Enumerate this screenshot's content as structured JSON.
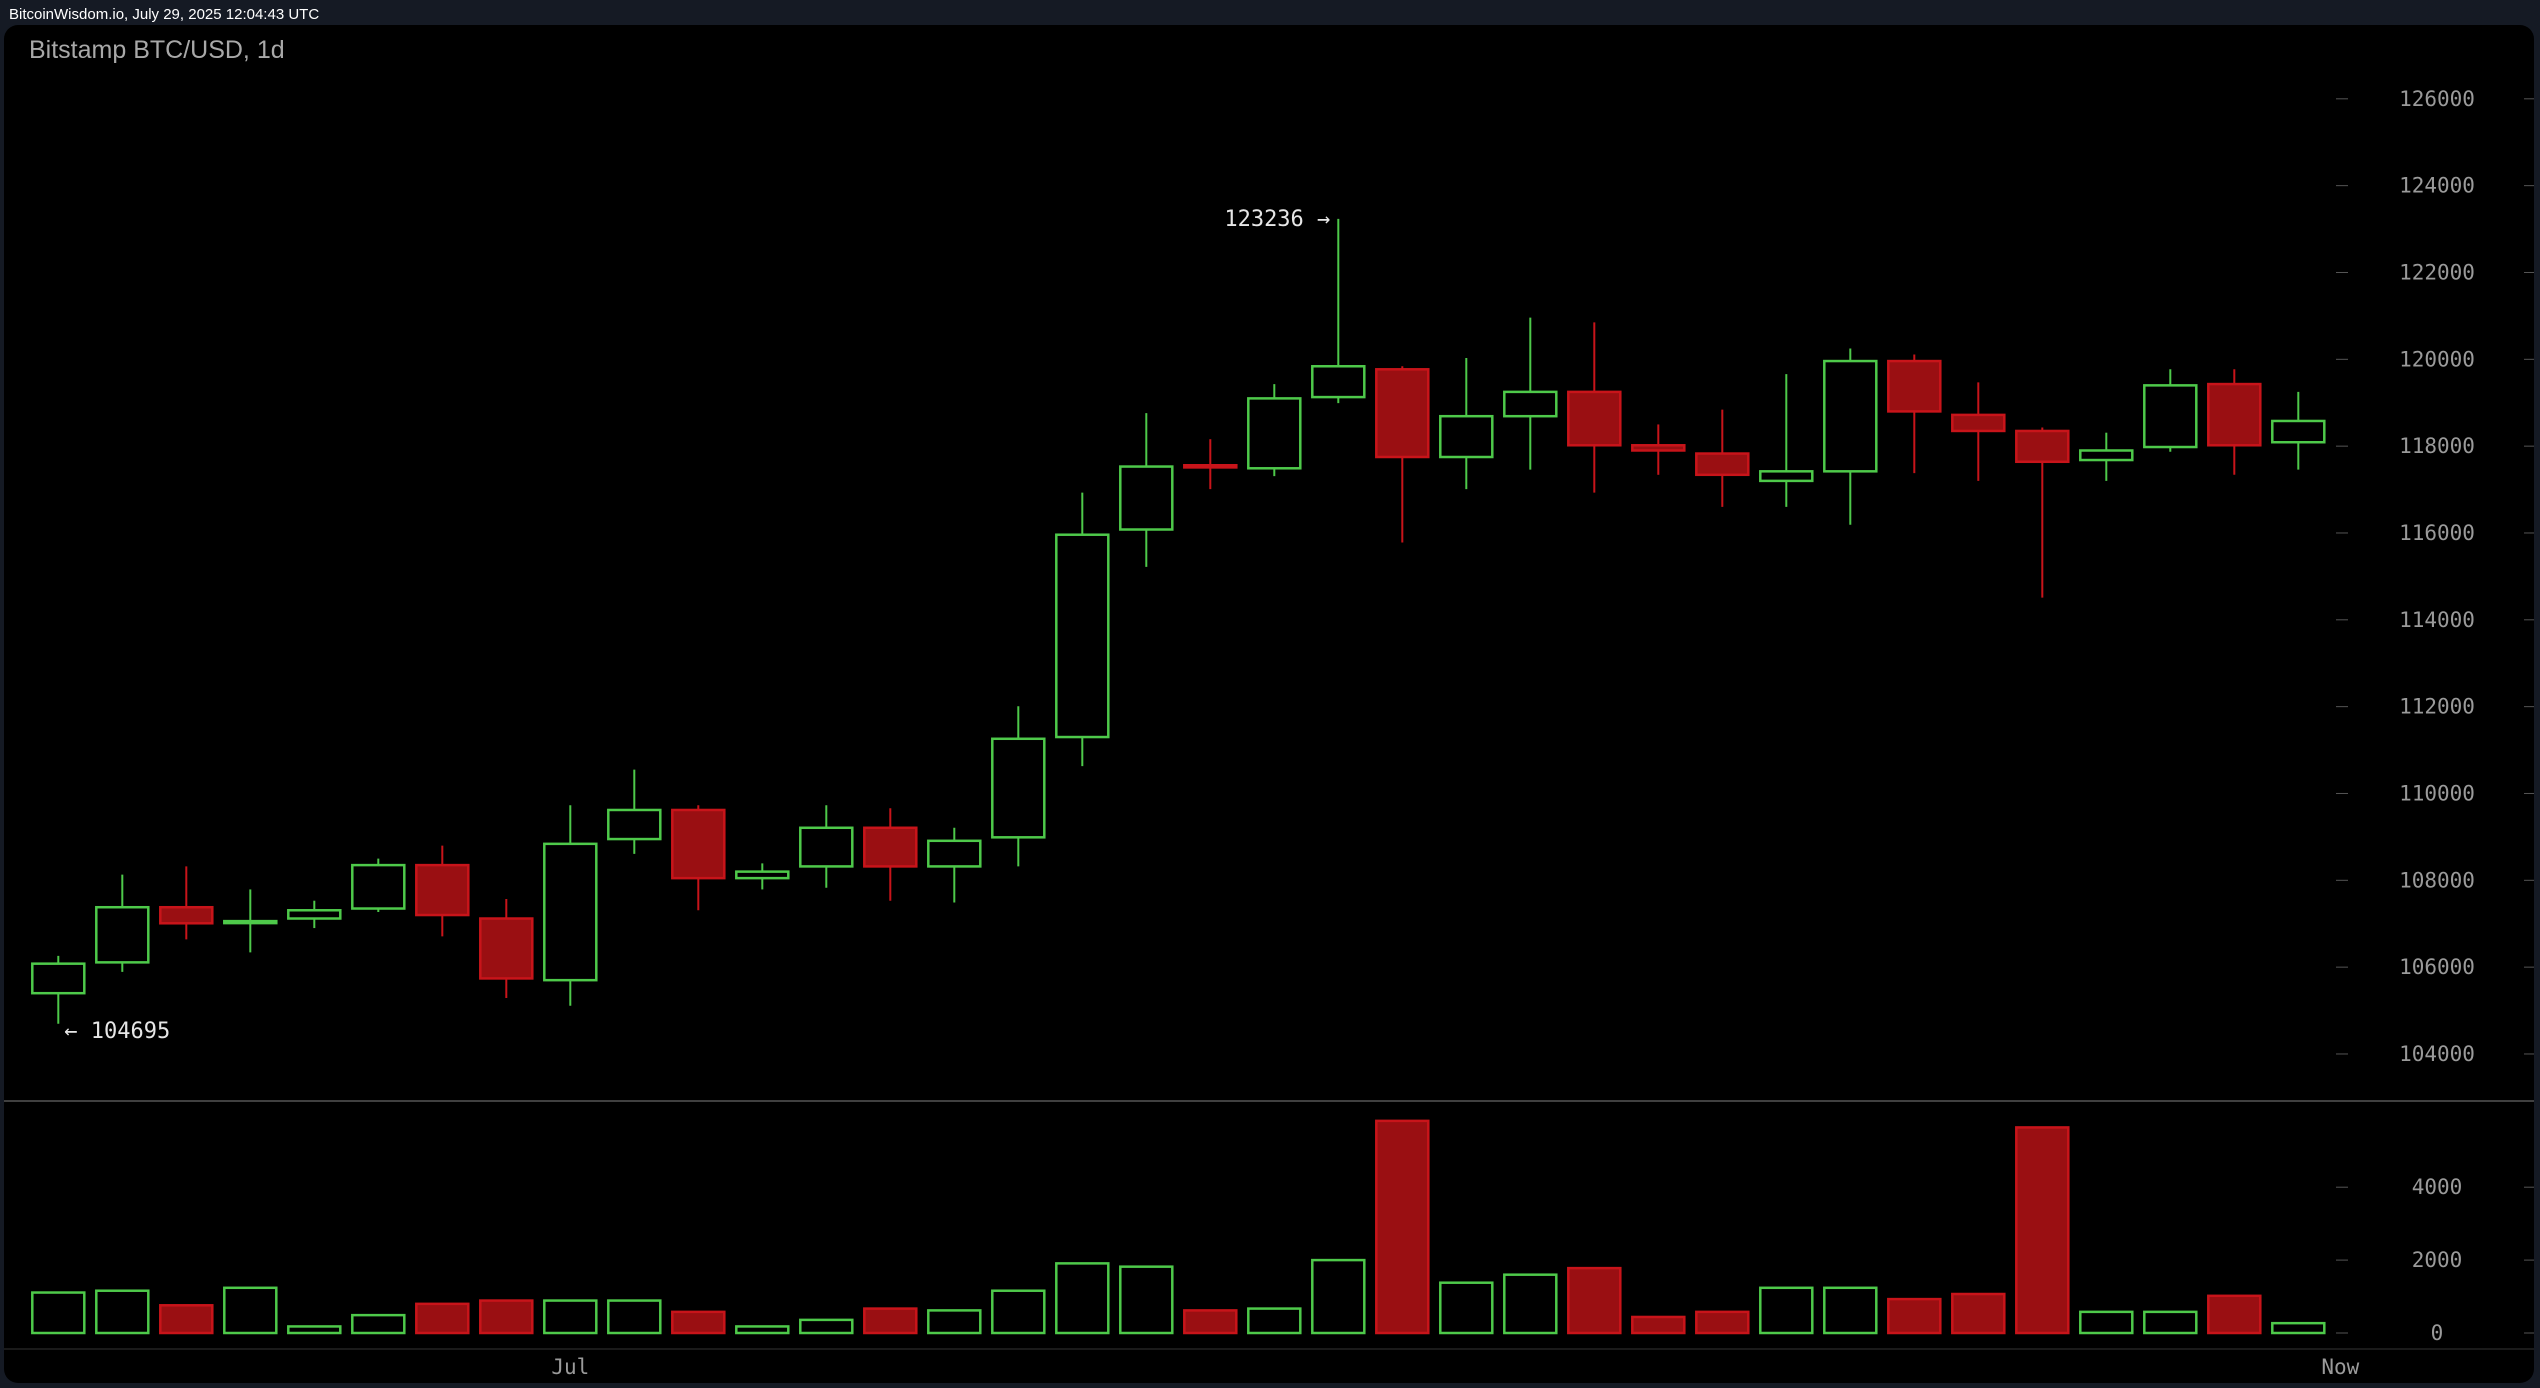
{
  "header": {
    "source": "BitcoinWisdom.io, July 29, 2025 12:04:43 UTC"
  },
  "chart_data": {
    "type": "candlestick",
    "title": "Bitstamp BTC/USD, 1d",
    "colors": {
      "up": "#4ec94a",
      "down": "#c8141a",
      "down_fill": "#9a0f12",
      "background": "#000000"
    },
    "price_axis": {
      "ylim": [
        103000,
        127000
      ],
      "ticks": [
        "104000",
        "106000",
        "108000",
        "110000",
        "112000",
        "114000",
        "116000",
        "118000",
        "120000",
        "122000",
        "124000",
        "126000"
      ]
    },
    "volume_axis": {
      "ylim": [
        0,
        6000
      ],
      "ticks": [
        "0",
        "2000",
        "4000"
      ]
    },
    "x_labels": [
      {
        "index": 8,
        "label": "Jul"
      },
      {
        "index": 36,
        "label": "Now"
      }
    ],
    "annotations": {
      "high": {
        "index": 20,
        "label": "123236 →",
        "value": 123236
      },
      "low": {
        "index": 0,
        "label": "← 104695",
        "value": 104695
      }
    },
    "candles": [
      {
        "o": 105400,
        "h": 106260,
        "l": 104695,
        "c": 106080,
        "v": 1110
      },
      {
        "o": 106110,
        "h": 108130,
        "l": 105890,
        "c": 107380,
        "v": 1160
      },
      {
        "o": 107380,
        "h": 108320,
        "l": 106640,
        "c": 107010,
        "v": 760
      },
      {
        "o": 107030,
        "h": 107790,
        "l": 106340,
        "c": 107060,
        "v": 1240
      },
      {
        "o": 107120,
        "h": 107530,
        "l": 106900,
        "c": 107310,
        "v": 180
      },
      {
        "o": 107350,
        "h": 108500,
        "l": 107270,
        "c": 108350,
        "v": 490
      },
      {
        "o": 108350,
        "h": 108800,
        "l": 106710,
        "c": 107200,
        "v": 800
      },
      {
        "o": 107120,
        "h": 107570,
        "l": 105290,
        "c": 105740,
        "v": 890
      },
      {
        "o": 105700,
        "h": 109730,
        "l": 105110,
        "c": 108840,
        "v": 890
      },
      {
        "o": 108950,
        "h": 110550,
        "l": 108610,
        "c": 109620,
        "v": 890
      },
      {
        "o": 109620,
        "h": 109730,
        "l": 107310,
        "c": 108050,
        "v": 580
      },
      {
        "o": 108050,
        "h": 108390,
        "l": 107790,
        "c": 108200,
        "v": 180
      },
      {
        "o": 108320,
        "h": 109730,
        "l": 107830,
        "c": 109210,
        "v": 360
      },
      {
        "o": 109210,
        "h": 109660,
        "l": 107530,
        "c": 108320,
        "v": 670
      },
      {
        "o": 108320,
        "h": 109210,
        "l": 107490,
        "c": 108910,
        "v": 620
      },
      {
        "o": 108990,
        "h": 112010,
        "l": 108320,
        "c": 111260,
        "v": 1160
      },
      {
        "o": 111300,
        "h": 116930,
        "l": 110630,
        "c": 115960,
        "v": 1910
      },
      {
        "o": 116080,
        "h": 118760,
        "l": 115220,
        "c": 117530,
        "v": 1820
      },
      {
        "o": 117560,
        "h": 118160,
        "l": 117010,
        "c": 117510,
        "v": 620
      },
      {
        "o": 117490,
        "h": 119430,
        "l": 117310,
        "c": 119100,
        "v": 670
      },
      {
        "o": 119130,
        "h": 123236,
        "l": 118990,
        "c": 119840,
        "v": 2000
      },
      {
        "o": 119770,
        "h": 119840,
        "l": 115780,
        "c": 117750,
        "v": 5820
      },
      {
        "o": 117750,
        "h": 120030,
        "l": 117010,
        "c": 118690,
        "v": 1380
      },
      {
        "o": 118690,
        "h": 120960,
        "l": 117460,
        "c": 119250,
        "v": 1600
      },
      {
        "o": 119250,
        "h": 120850,
        "l": 116930,
        "c": 118020,
        "v": 1780
      },
      {
        "o": 118020,
        "h": 118500,
        "l": 117340,
        "c": 117900,
        "v": 440
      },
      {
        "o": 117830,
        "h": 118840,
        "l": 116600,
        "c": 117340,
        "v": 580
      },
      {
        "o": 117200,
        "h": 119660,
        "l": 116600,
        "c": 117420,
        "v": 1240
      },
      {
        "o": 117420,
        "h": 120250,
        "l": 116190,
        "c": 119960,
        "v": 1240
      },
      {
        "o": 119960,
        "h": 120110,
        "l": 117380,
        "c": 118800,
        "v": 930
      },
      {
        "o": 118720,
        "h": 119470,
        "l": 117200,
        "c": 118350,
        "v": 1070
      },
      {
        "o": 118350,
        "h": 118430,
        "l": 114510,
        "c": 117640,
        "v": 5640
      },
      {
        "o": 117680,
        "h": 118310,
        "l": 117200,
        "c": 117900,
        "v": 580
      },
      {
        "o": 117980,
        "h": 119770,
        "l": 117870,
        "c": 119400,
        "v": 580
      },
      {
        "o": 119430,
        "h": 119770,
        "l": 117340,
        "c": 118020,
        "v": 1020
      },
      {
        "o": 118090,
        "h": 119250,
        "l": 117460,
        "c": 118580,
        "v": 270
      }
    ]
  }
}
